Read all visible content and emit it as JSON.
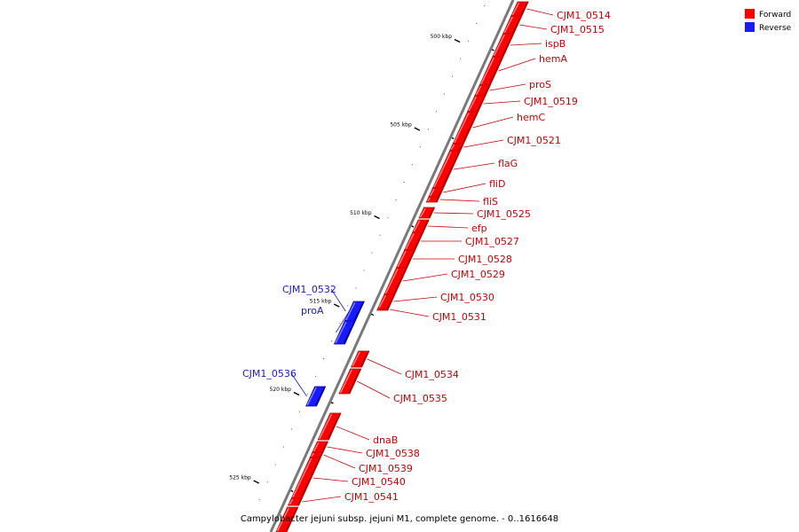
{
  "caption": "Campylobacter jejuni subsp. jejuni M1, complete genome. - 0..1616648",
  "colors": {
    "forward": "#ff0000",
    "reverse": "#1a1aff",
    "forward_dark": "#b30000",
    "reverse_dark": "#0000a8",
    "forward_light": "#ff8080",
    "reverse_light": "#8080ff",
    "backbone": "#7a7a7a",
    "label_forward": "#cc0000",
    "label_reverse": "#1a1acc"
  },
  "legend": [
    {
      "name": "Forward",
      "strand": "forward"
    },
    {
      "name": "Reverse",
      "strand": "reverse"
    }
  ],
  "scale_labels": [
    "500 kbp",
    "505 kbp",
    "510 kbp",
    "515 kbp",
    "520 kbp",
    "525 kbp"
  ],
  "features": [
    {
      "label": "CJM1_0514",
      "strand": "forward"
    },
    {
      "label": "CJM1_0515",
      "strand": "forward"
    },
    {
      "label": "ispB",
      "strand": "forward"
    },
    {
      "label": "hemA",
      "strand": "forward"
    },
    {
      "label": "proS",
      "strand": "forward"
    },
    {
      "label": "CJM1_0519",
      "strand": "forward"
    },
    {
      "label": "hemC",
      "strand": "forward"
    },
    {
      "label": "CJM1_0521",
      "strand": "forward"
    },
    {
      "label": "flaG",
      "strand": "forward"
    },
    {
      "label": "fliD",
      "strand": "forward"
    },
    {
      "label": "fliS",
      "strand": "forward"
    },
    {
      "label": "CJM1_0525",
      "strand": "forward"
    },
    {
      "label": "efp",
      "strand": "forward"
    },
    {
      "label": "CJM1_0527",
      "strand": "forward"
    },
    {
      "label": "CJM1_0528",
      "strand": "forward"
    },
    {
      "label": "CJM1_0529",
      "strand": "forward"
    },
    {
      "label": "CJM1_0530",
      "strand": "forward"
    },
    {
      "label": "CJM1_0531",
      "strand": "forward"
    },
    {
      "label": "CJM1_0532",
      "strand": "reverse"
    },
    {
      "label": "proA",
      "strand": "reverse"
    },
    {
      "label": "CJM1_0534",
      "strand": "forward"
    },
    {
      "label": "CJM1_0535",
      "strand": "forward"
    },
    {
      "label": "CJM1_0536",
      "strand": "reverse"
    },
    {
      "label": "dnaB",
      "strand": "forward"
    },
    {
      "label": "CJM1_0538",
      "strand": "forward"
    },
    {
      "label": "CJM1_0539",
      "strand": "forward"
    },
    {
      "label": "CJM1_0540",
      "strand": "forward"
    },
    {
      "label": "CJM1_0541",
      "strand": "forward"
    }
  ]
}
